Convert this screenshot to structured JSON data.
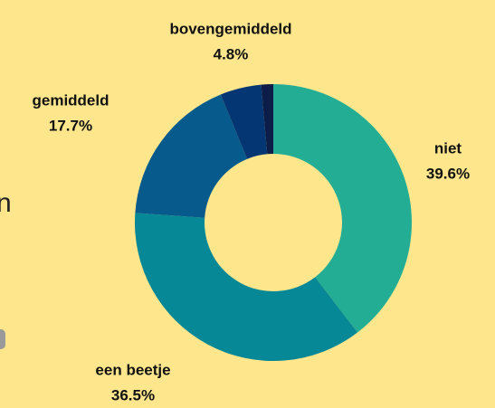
{
  "chart_data": {
    "type": "donut",
    "categories": [
      "niet",
      "een beetje",
      "gemiddeld",
      "bovengemiddeld",
      null
    ],
    "values": [
      39.6,
      36.5,
      17.7,
      4.8,
      1.4
    ],
    "value_labels": [
      "39.6%",
      "36.5%",
      "17.7%",
      "4.8%",
      null
    ],
    "colors": [
      "#23ad95",
      "#078896",
      "#065a8c",
      "#043673",
      "#0b1d48"
    ]
  },
  "cut_off_text": "n"
}
